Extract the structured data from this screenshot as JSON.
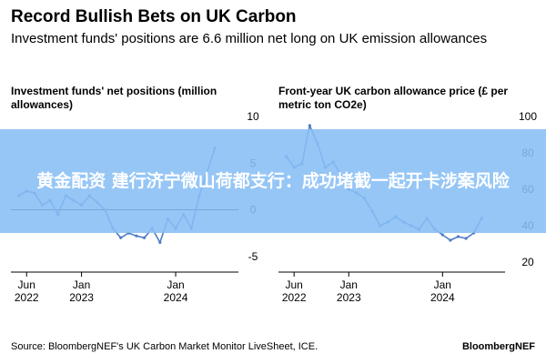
{
  "header": {
    "title": "Record Bullish Bets on UK Carbon",
    "subtitle": "Investment funds' positions are 6.6 million net long on UK emission allowances"
  },
  "overlay_text": "黄金配资 建行济宁微山荷都支行：成功堵截一起开卡涉案风险",
  "footer": {
    "source": "Source: BloombergNEF's UK Carbon Market Monitor LiveSheet, ICE.",
    "brand": "BloombergNEF"
  },
  "colors": {
    "line": "#4f7dc5",
    "zero_line": "#000000",
    "grid": "#cccccc"
  },
  "chart_data": [
    {
      "type": "line",
      "title": "Investment funds' net positions (million allowances)",
      "x_ticks": [
        {
          "date": "2022-06",
          "label": "Jun\n2022"
        },
        {
          "date": "2023-01",
          "label": "Jan\n2023"
        },
        {
          "date": "2024-01",
          "label": "Jan\n2024"
        }
      ],
      "xlim": [
        "2022-04",
        "2024-09"
      ],
      "ylim": [
        -6,
        10
      ],
      "y_ticks": [
        10,
        5,
        0,
        -5
      ],
      "zero_line": true,
      "series": [
        {
          "x": [
            "2022-05",
            "2022-06",
            "2022-07",
            "2022-08",
            "2022-09",
            "2022-10",
            "2022-11",
            "2022-12",
            "2023-01",
            "2023-02",
            "2023-03",
            "2023-04",
            "2023-05",
            "2023-06",
            "2023-07",
            "2023-08",
            "2023-09",
            "2023-10",
            "2023-11",
            "2023-12",
            "2024-01",
            "2024-02",
            "2024-03",
            "2024-04",
            "2024-05",
            "2024-06"
          ],
          "values": [
            1.5,
            2.0,
            1.8,
            0.5,
            1.0,
            -0.5,
            1.5,
            1.0,
            0.5,
            1.5,
            0.8,
            0.0,
            -2.0,
            -3.0,
            -2.5,
            -2.8,
            -3.0,
            -2.0,
            -3.5,
            -1.0,
            -2.0,
            -0.5,
            -2.0,
            1.5,
            4.0,
            6.6
          ]
        }
      ]
    },
    {
      "type": "line",
      "title": "Front-year UK carbon allowance price (£ per metric ton CO2e)",
      "x_ticks": [
        {
          "date": "2022-06",
          "label": "Jun\n2022"
        },
        {
          "date": "2023-01",
          "label": "Jan\n2023"
        },
        {
          "date": "2024-01",
          "label": "Jan\n2024"
        }
      ],
      "xlim": [
        "2022-04",
        "2024-09"
      ],
      "ylim": [
        20,
        100
      ],
      "y_ticks": [
        100,
        80,
        60,
        40,
        20
      ],
      "series": [
        {
          "x": [
            "2022-05",
            "2022-06",
            "2022-07",
            "2022-08",
            "2022-09",
            "2022-10",
            "2022-11",
            "2022-12",
            "2023-01",
            "2023-02",
            "2023-03",
            "2023-04",
            "2023-05",
            "2023-06",
            "2023-07",
            "2023-08",
            "2023-09",
            "2023-10",
            "2023-11",
            "2023-12",
            "2024-01",
            "2024-02",
            "2024-03",
            "2024-04",
            "2024-05",
            "2024-06"
          ],
          "values": [
            78,
            72,
            74,
            95,
            85,
            72,
            75,
            68,
            60,
            58,
            55,
            48,
            40,
            42,
            45,
            42,
            40,
            38,
            44,
            38,
            35,
            32,
            34,
            33,
            36,
            44
          ]
        }
      ]
    }
  ]
}
